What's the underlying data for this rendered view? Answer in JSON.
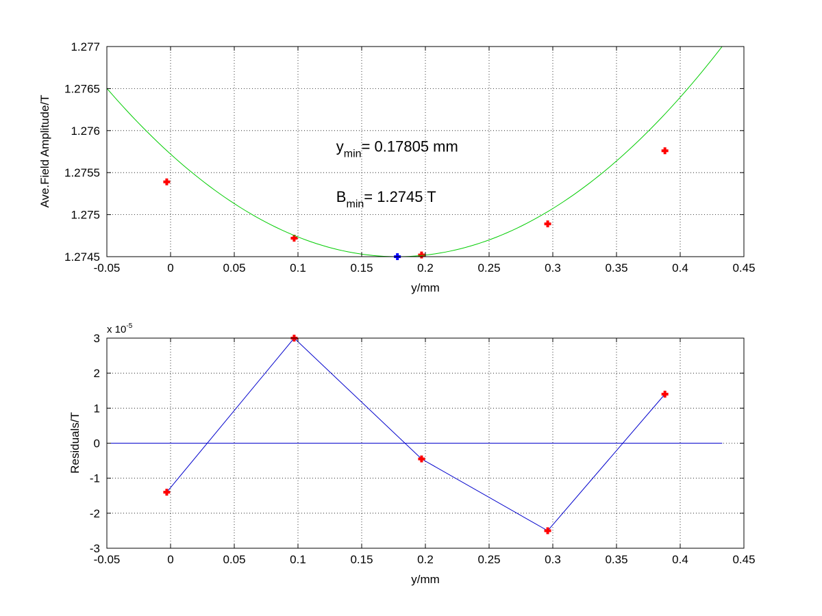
{
  "chart_data": [
    {
      "type": "scatter",
      "title": "",
      "xlabel": "y/mm",
      "ylabel": "Ave.Field Amplitude/T",
      "xlim": [
        -0.05,
        0.45
      ],
      "ylim": [
        1.2745,
        1.277
      ],
      "grid": true,
      "xticks": [
        "-0.05",
        "0",
        "0.05",
        "0.1",
        "0.15",
        "0.2",
        "0.25",
        "0.3",
        "0.35",
        "0.4",
        "0.45"
      ],
      "yticks": [
        "1.2745",
        "1.275",
        "1.2755",
        "1.276",
        "1.2765",
        "1.277"
      ],
      "series": [
        {
          "kind": "markers",
          "color": "#ff0000",
          "x": [
            -0.003,
            0.097,
            0.197,
            0.296,
            0.388
          ],
          "y": [
            1.27539,
            1.27472,
            1.27452,
            1.27489,
            1.27576
          ]
        },
        {
          "kind": "line",
          "color": "#00cc00",
          "x": [
            -0.05,
            0.433
          ],
          "fit": {
            "vertex_x": 0.17805,
            "vertex_y": 1.2745,
            "a": 0.0385
          }
        },
        {
          "kind": "marker",
          "color": "#0000ff",
          "x": [
            0.17805
          ],
          "y": [
            1.2745
          ]
        }
      ],
      "annotations": [
        {
          "main": "y",
          "sub": "min",
          "rest": "= 0.17805 mm",
          "x": 0.13,
          "y": 1.27575
        },
        {
          "main": "B",
          "sub": "min",
          "rest": "= 1.2745 T",
          "x": 0.13,
          "y": 1.27515
        }
      ]
    },
    {
      "type": "line",
      "title": "",
      "xlabel": "y/mm",
      "ylabel": "Residuals/T",
      "xlim": [
        -0.05,
        0.45
      ],
      "ylim": [
        -3,
        3
      ],
      "grid": true,
      "y_exponent": {
        "base": "x 10",
        "power": "-5"
      },
      "xticks": [
        "-0.05",
        "0",
        "0.05",
        "0.1",
        "0.15",
        "0.2",
        "0.25",
        "0.3",
        "0.35",
        "0.4",
        "0.45"
      ],
      "yticks": [
        "-3",
        "-2",
        "-1",
        "0",
        "1",
        "2",
        "3"
      ],
      "series": [
        {
          "kind": "line+markers",
          "line_color": "#0000cc",
          "marker_color": "#ff0000",
          "x": [
            -0.003,
            0.097,
            0.197,
            0.296,
            0.388
          ],
          "y": [
            -1.4,
            3.0,
            -0.45,
            -2.5,
            1.4
          ]
        },
        {
          "kind": "hline",
          "color": "#0000cc",
          "y": 0,
          "x": [
            -0.05,
            0.433
          ]
        }
      ]
    }
  ]
}
